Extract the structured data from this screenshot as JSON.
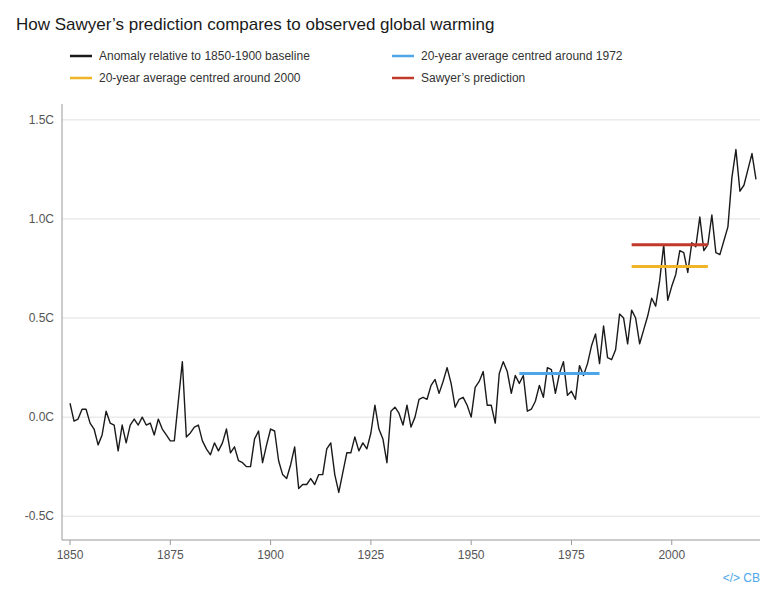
{
  "chart_data": {
    "type": "line",
    "title": "How Sawyer’s prediction compares to observed global warming",
    "xlim": [
      1848,
      2022
    ],
    "ylim": [
      -0.62,
      1.58
    ],
    "xticks": [
      1850,
      1875,
      1900,
      1925,
      1950,
      1975,
      2000
    ],
    "yticks": [
      {
        "value": -0.5,
        "label": "-0.5C"
      },
      {
        "value": 0.0,
        "label": "0.0C"
      },
      {
        "value": 0.5,
        "label": "0.5C"
      },
      {
        "value": 1.0,
        "label": "1.0C"
      },
      {
        "value": 1.5,
        "label": "1.5C"
      }
    ],
    "grid": true,
    "legend": "top",
    "series": [
      {
        "name": "Anomaly relative to 1850-1900 baseline",
        "color": "#1a1a1a",
        "line_style": "solid",
        "x": [
          1850,
          1851,
          1852,
          1853,
          1854,
          1855,
          1856,
          1857,
          1858,
          1859,
          1860,
          1861,
          1862,
          1863,
          1864,
          1865,
          1866,
          1867,
          1868,
          1869,
          1870,
          1871,
          1872,
          1873,
          1874,
          1875,
          1876,
          1877,
          1878,
          1879,
          1880,
          1881,
          1882,
          1883,
          1884,
          1885,
          1886,
          1887,
          1888,
          1889,
          1890,
          1891,
          1892,
          1893,
          1894,
          1895,
          1896,
          1897,
          1898,
          1899,
          1900,
          1901,
          1902,
          1903,
          1904,
          1905,
          1906,
          1907,
          1908,
          1909,
          1910,
          1911,
          1912,
          1913,
          1914,
          1915,
          1916,
          1917,
          1918,
          1919,
          1920,
          1921,
          1922,
          1923,
          1924,
          1925,
          1926,
          1927,
          1928,
          1929,
          1930,
          1931,
          1932,
          1933,
          1934,
          1935,
          1936,
          1937,
          1938,
          1939,
          1940,
          1941,
          1942,
          1943,
          1944,
          1945,
          1946,
          1947,
          1948,
          1949,
          1950,
          1951,
          1952,
          1953,
          1954,
          1955,
          1956,
          1957,
          1958,
          1959,
          1960,
          1961,
          1962,
          1963,
          1964,
          1965,
          1966,
          1967,
          1968,
          1969,
          1970,
          1971,
          1972,
          1973,
          1974,
          1975,
          1976,
          1977,
          1978,
          1979,
          1980,
          1981,
          1982,
          1983,
          1984,
          1985,
          1986,
          1987,
          1988,
          1989,
          1990,
          1991,
          1992,
          1993,
          1994,
          1995,
          1996,
          1997,
          1998,
          1999,
          2000,
          2001,
          2002,
          2003,
          2004,
          2005,
          2006,
          2007,
          2008,
          2009,
          2010,
          2011,
          2012,
          2013,
          2014,
          2015,
          2016,
          2017,
          2018,
          2019,
          2020,
          2021
        ],
        "values": [
          0.07,
          -0.02,
          -0.01,
          0.04,
          0.04,
          -0.03,
          -0.06,
          -0.14,
          -0.09,
          0.03,
          -0.03,
          -0.04,
          -0.17,
          -0.04,
          -0.13,
          -0.04,
          -0.01,
          -0.04,
          0.0,
          -0.04,
          -0.03,
          -0.09,
          -0.01,
          -0.06,
          -0.09,
          -0.12,
          -0.12,
          0.08,
          0.28,
          -0.1,
          -0.08,
          -0.05,
          -0.04,
          -0.12,
          -0.16,
          -0.19,
          -0.13,
          -0.17,
          -0.13,
          -0.06,
          -0.18,
          -0.15,
          -0.22,
          -0.23,
          -0.25,
          -0.25,
          -0.11,
          -0.07,
          -0.23,
          -0.14,
          -0.06,
          -0.07,
          -0.22,
          -0.29,
          -0.31,
          -0.24,
          -0.15,
          -0.36,
          -0.34,
          -0.34,
          -0.31,
          -0.34,
          -0.29,
          -0.29,
          -0.16,
          -0.13,
          -0.29,
          -0.38,
          -0.28,
          -0.18,
          -0.18,
          -0.1,
          -0.17,
          -0.13,
          -0.16,
          -0.08,
          0.06,
          -0.06,
          -0.11,
          -0.23,
          0.03,
          0.05,
          0.02,
          -0.04,
          0.06,
          -0.05,
          0.0,
          0.09,
          0.1,
          0.09,
          0.16,
          0.19,
          0.12,
          0.18,
          0.25,
          0.17,
          0.05,
          0.09,
          0.1,
          0.06,
          0.0,
          0.15,
          0.18,
          0.23,
          0.06,
          0.06,
          -0.03,
          0.22,
          0.28,
          0.23,
          0.12,
          0.21,
          0.17,
          0.21,
          0.03,
          0.04,
          0.08,
          0.16,
          0.1,
          0.25,
          0.24,
          0.12,
          0.22,
          0.28,
          0.11,
          0.13,
          0.09,
          0.26,
          0.21,
          0.27,
          0.36,
          0.42,
          0.27,
          0.46,
          0.3,
          0.29,
          0.34,
          0.52,
          0.5,
          0.37,
          0.54,
          0.5,
          0.37,
          0.44,
          0.51,
          0.6,
          0.56,
          0.69,
          0.87,
          0.59,
          0.66,
          0.72,
          0.84,
          0.83,
          0.73,
          0.88,
          0.86,
          1.01,
          0.84,
          0.87,
          1.02,
          0.83,
          0.82,
          0.89,
          0.96,
          1.21,
          1.35,
          1.14,
          1.17,
          1.25,
          1.33,
          1.2
        ]
      },
      {
        "name": "20-year average centred around 1972",
        "color": "#4da6e8",
        "line_style": "solid",
        "x": [
          1962,
          1982
        ],
        "values": [
          0.22,
          0.22
        ]
      },
      {
        "name": "20-year average centred around 2000",
        "color": "#f0b429",
        "line_style": "solid",
        "x": [
          1990,
          2009
        ],
        "values": [
          0.76,
          0.76
        ]
      },
      {
        "name": "Sawyer’s prediction",
        "color": "#c0392b",
        "line_style": "solid",
        "x": [
          1990,
          2009
        ],
        "values": [
          0.87,
          0.87
        ]
      }
    ],
    "annotations": [
      {
        "text": "</> CB",
        "color": "#4da6e8"
      }
    ]
  }
}
